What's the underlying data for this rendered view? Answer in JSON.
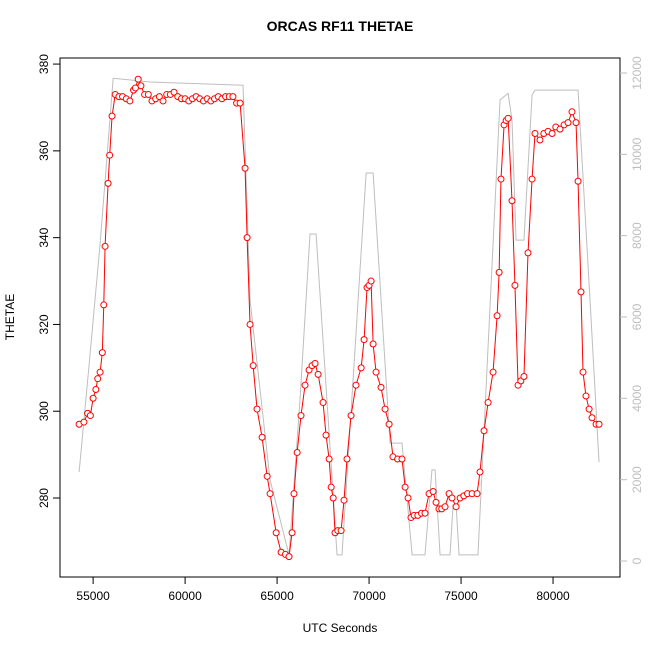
{
  "chart_data": {
    "type": "line",
    "title": "ORCAS RF11 THETAE",
    "x_label": "UTC Seconds",
    "y_label": "THETAE",
    "xlim": [
      53200,
      83640
    ],
    "xticks": [
      55000,
      60000,
      65000,
      70000,
      75000,
      80000
    ],
    "ylim": [
      261.8,
      381.4
    ],
    "yticks": [
      280,
      300,
      320,
      340,
      360,
      380
    ],
    "y2lim": [
      -393,
      12369
    ],
    "y2ticks": [
      0,
      2000,
      4000,
      6000,
      8000,
      10000,
      12000
    ],
    "series": [
      {
        "color": "#ff0000",
        "markers": true,
        "x": [
          54239,
          54500,
          54700,
          54850,
          55000,
          55150,
          55250,
          55380,
          55500,
          55580,
          55650,
          55815,
          55900,
          56030,
          56200,
          56400,
          56600,
          56800,
          57000,
          57200,
          57300,
          57450,
          57600,
          57800,
          58000,
          58200,
          58400,
          58600,
          58800,
          59000,
          59200,
          59400,
          59600,
          59800,
          60000,
          60200,
          60400,
          60600,
          60800,
          61000,
          61200,
          61400,
          61600,
          61800,
          62000,
          62200,
          62400,
          62600,
          62800,
          62990,
          63260,
          63370,
          63530,
          63700,
          63910,
          64185,
          64460,
          64620,
          64950,
          65220,
          65450,
          65650,
          65815,
          65920,
          66090,
          66300,
          66520,
          66740,
          66900,
          67065,
          67230,
          67500,
          67660,
          67830,
          67940,
          68050,
          68150,
          68300,
          68480,
          68640,
          68800,
          69020,
          69290,
          69570,
          69730,
          69890,
          70000,
          70110,
          70220,
          70380,
          70650,
          70870,
          71090,
          71300,
          71550,
          71790,
          71960,
          72120,
          72280,
          72450,
          72650,
          72850,
          73040,
          73260,
          73480,
          73640,
          73800,
          73950,
          74130,
          74350,
          74510,
          74730,
          74950,
          75150,
          75350,
          75600,
          75870,
          76030,
          76250,
          76470,
          76740,
          76960,
          77070,
          77170,
          77340,
          77450,
          77560,
          77770,
          77930,
          78100,
          78250,
          78420,
          78640,
          78860,
          79020,
          79290,
          79500,
          79730,
          79950,
          80150,
          80380,
          80600,
          80815,
          81030,
          81250,
          81360,
          81520,
          81630,
          81790,
          81960,
          82120,
          82340,
          82500
        ],
        "values": [
          297,
          297.5,
          299.5,
          299,
          303,
          305,
          307.5,
          309,
          313.5,
          324.5,
          338,
          352.5,
          359,
          368,
          373,
          372.5,
          372.5,
          372,
          371.5,
          374,
          374.5,
          376.5,
          375,
          373,
          373,
          371.5,
          372,
          372.5,
          371.5,
          373,
          373,
          373.5,
          372.5,
          372,
          372,
          371.5,
          372,
          372.5,
          372,
          371.5,
          372,
          371.5,
          372,
          372.5,
          372,
          372.5,
          372.5,
          372.5,
          371,
          371,
          356,
          340,
          320,
          310.5,
          300.5,
          294,
          285,
          281,
          272,
          267.5,
          267,
          266.5,
          272,
          281,
          290.5,
          299,
          306,
          309.5,
          310.5,
          311,
          308.5,
          302,
          294.5,
          289,
          282.5,
          280,
          272,
          272.5,
          272.5,
          279.5,
          289,
          299,
          306,
          310,
          316.5,
          328.5,
          329,
          330,
          315.5,
          309,
          305.5,
          300.5,
          297,
          289.5,
          289,
          289,
          282.5,
          280,
          275.5,
          276,
          276,
          276.5,
          276.5,
          281,
          281.5,
          279,
          277.5,
          277.5,
          278,
          281,
          280,
          278,
          280,
          280.5,
          281,
          281,
          281,
          286,
          295.5,
          302,
          309,
          322,
          332,
          353.5,
          366,
          367,
          367.5,
          348.5,
          329,
          306,
          307,
          308,
          336.5,
          353.5,
          364,
          362.5,
          364,
          364.5,
          364,
          365.5,
          365,
          366,
          366.5,
          369,
          366.5,
          353,
          327.5,
          309,
          303.5,
          300.5,
          298.5,
          297,
          297
        ]
      },
      {
        "color": "#bebebe",
        "axis": "y2",
        "x": [
          54239,
          54730,
          55380,
          56090,
          58100,
          63150,
          63530,
          64620,
          65650,
          66250,
          66790,
          67120,
          68260,
          68530,
          69840,
          70220,
          71140,
          71790,
          72340,
          73040,
          73420,
          73590,
          73860,
          74400,
          74570,
          74730,
          74890,
          75920,
          77120,
          77560,
          77770,
          77990,
          78420,
          78860,
          79020,
          81360,
          82010,
          82500
        ],
        "values": [
          2190,
          4570,
          7800,
          11870,
          11780,
          11700,
          6420,
          1990,
          150,
          4000,
          8040,
          8040,
          150,
          150,
          9540,
          9540,
          2900,
          2900,
          150,
          150,
          2240,
          2240,
          150,
          150,
          1380,
          1380,
          150,
          150,
          11340,
          11500,
          10840,
          7890,
          7890,
          11460,
          11580,
          11580,
          6420,
          2430
        ]
      }
    ]
  }
}
